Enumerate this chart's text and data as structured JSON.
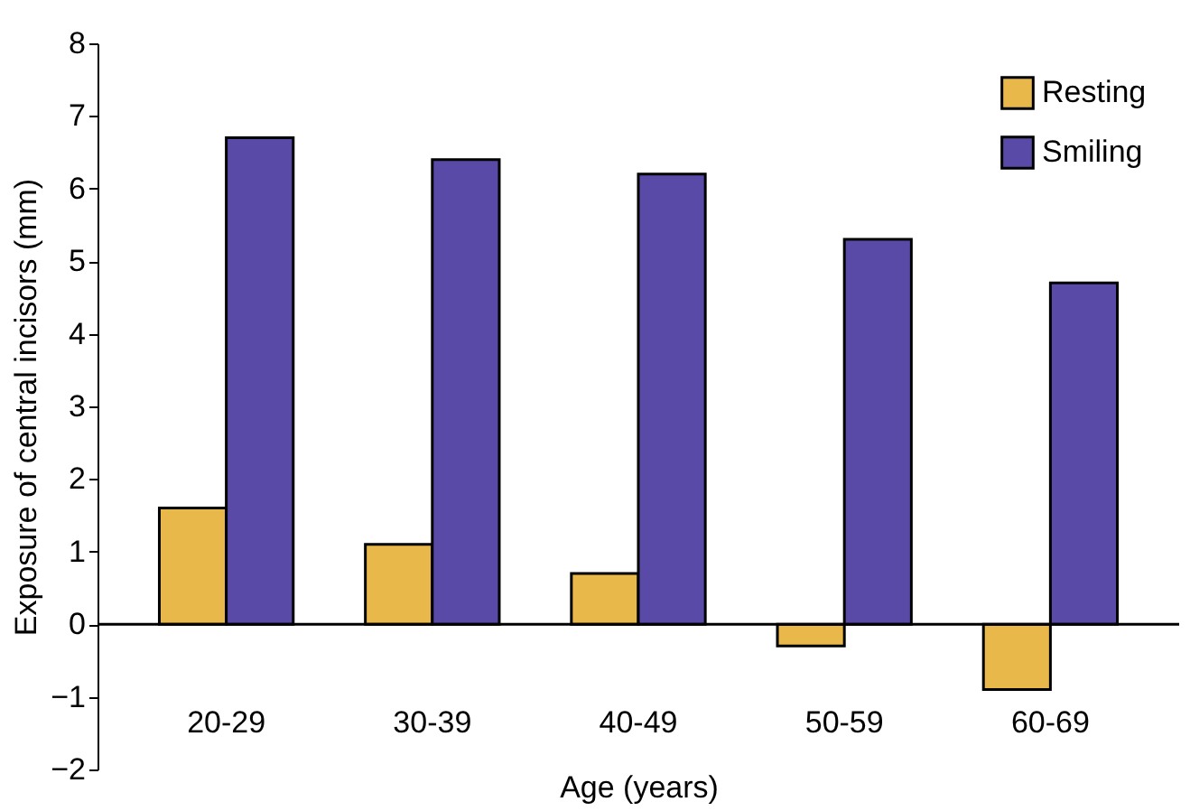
{
  "chart_data": {
    "type": "bar",
    "xlabel": "Age (years)",
    "ylabel": "Exposure of central incisors (mm)",
    "categories": [
      "20-29",
      "30-39",
      "40-49",
      "50-59",
      "60-69"
    ],
    "series": [
      {
        "name": "Resting",
        "color": "#e8b84a",
        "values": [
          1.6,
          1.1,
          0.7,
          -0.3,
          -0.9
        ]
      },
      {
        "name": "Smiling",
        "color": "#5a4aa8",
        "values": [
          6.7,
          6.4,
          6.2,
          5.3,
          4.7
        ]
      }
    ],
    "ylim": [
      -2,
      8
    ],
    "yticks": [
      {
        "value": -2,
        "label": "−2"
      },
      {
        "value": -1,
        "label": "−1"
      },
      0,
      1,
      2,
      3,
      4,
      5,
      6,
      7,
      8
    ],
    "ref_lines": [
      {
        "axis": "y",
        "value": 0,
        "color": "#000000"
      }
    ],
    "grid": false,
    "legend": "top right"
  }
}
